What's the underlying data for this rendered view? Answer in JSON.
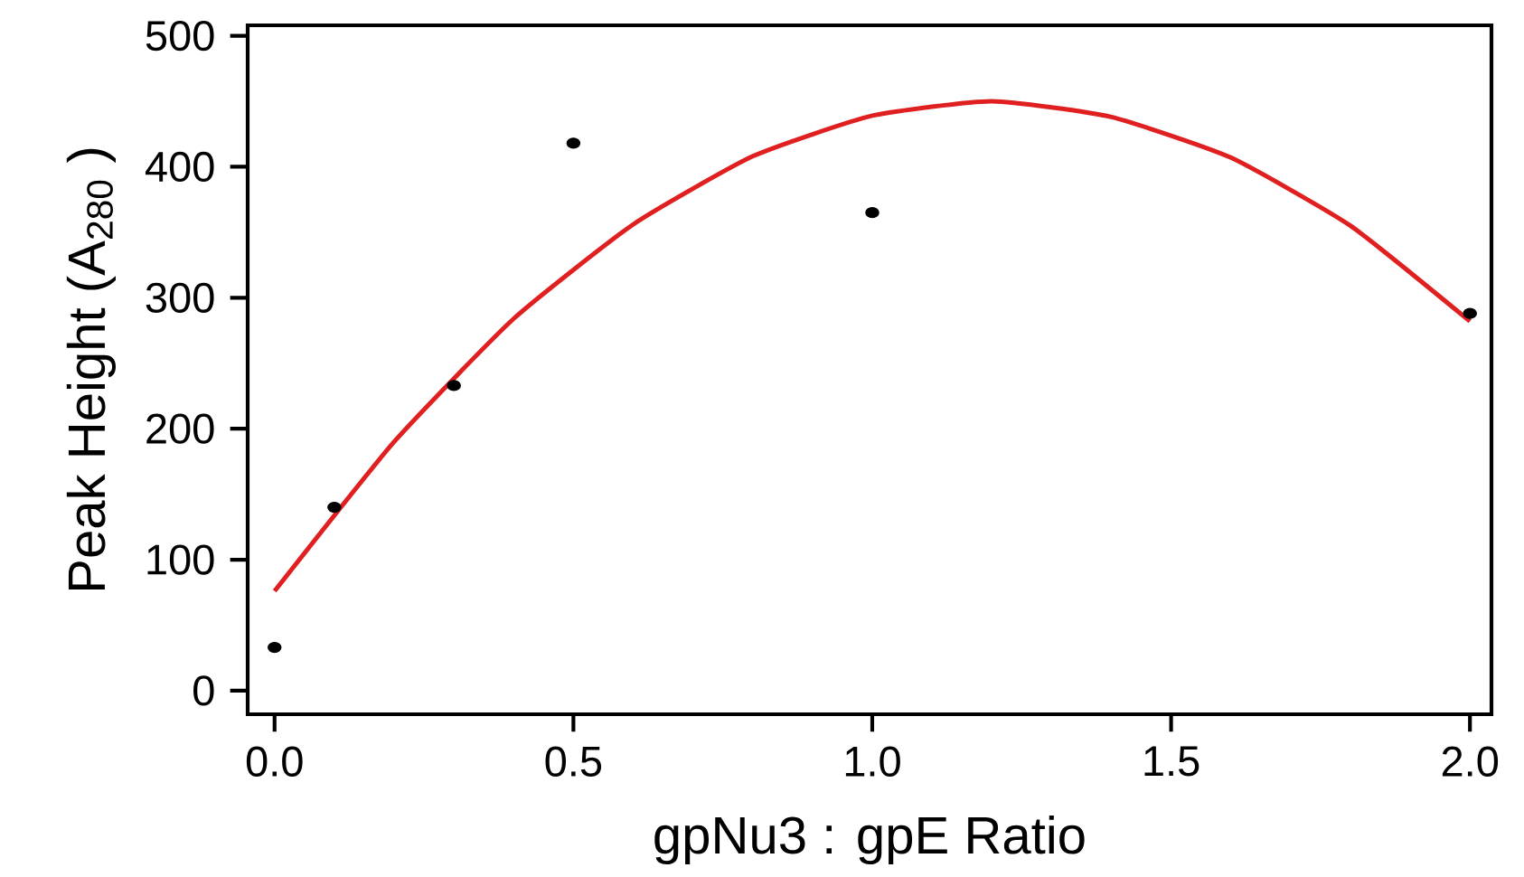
{
  "chart_data": {
    "type": "scatter",
    "xlabel": "gpNu3 : gpE Ratio",
    "ylabel": "Peak Height (A$_{280}$ )",
    "series": [
      {
        "color": "#000000",
        "marker": "circle",
        "x": [
          0,
          0.1,
          0.3,
          0.5,
          1.0,
          2.0
        ],
        "values": [
          33,
          140,
          233,
          418,
          365,
          288
        ]
      },
      {
        "type": "line",
        "color": "#e02020",
        "marker": "none",
        "x": [
          0,
          0.2,
          0.4,
          0.6,
          0.8,
          1.0,
          1.2,
          1.4,
          1.6,
          1.8,
          2.0
        ],
        "values": [
          76,
          190,
          284,
          356,
          408,
          439,
          450,
          438,
          407,
          355,
          282
        ]
      }
    ],
    "xlim": [
      -0.045,
      2.036
    ],
    "ylim": [
      -18,
      508
    ],
    "xticks": [
      {
        "value": 0,
        "label": "0.0"
      },
      {
        "value": 0.5,
        "label": "0.5"
      },
      {
        "value": 1,
        "label": "1.0"
      },
      {
        "value": 1.5,
        "label": "1.5"
      },
      {
        "value": 2,
        "label": "2.0"
      }
    ],
    "yticks": [
      0,
      100,
      200,
      300,
      400,
      500
    ],
    "grid": false
  }
}
